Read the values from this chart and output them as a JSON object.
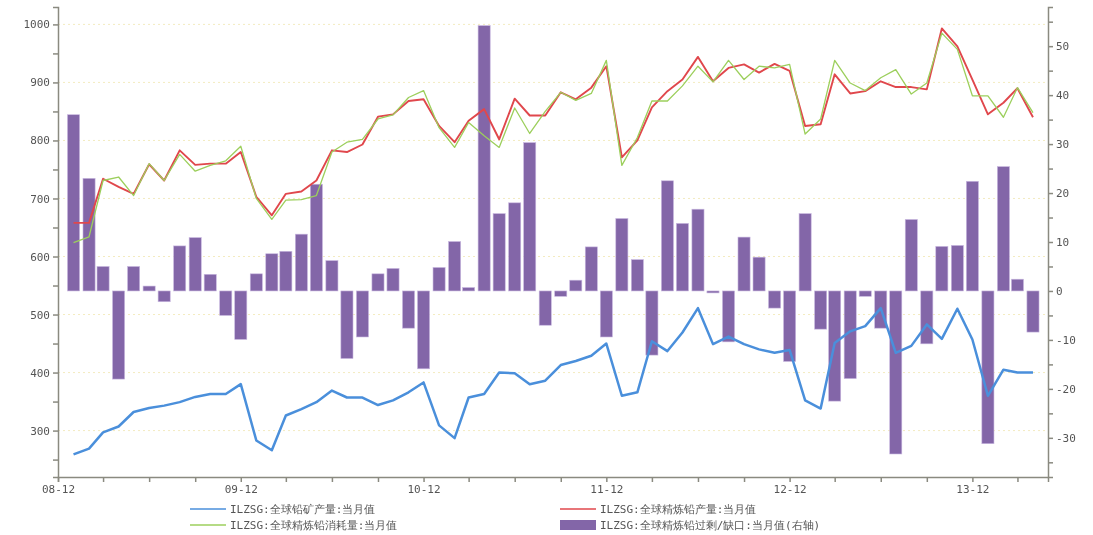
{
  "chart_data": {
    "type": "line",
    "legend": "bottom",
    "grid": "y",
    "x": [
      "2009-01",
      "2009-02",
      "2009-03",
      "2009-04",
      "2009-05",
      "2009-06",
      "2009-07",
      "2009-08",
      "2009-09",
      "2009-10",
      "2009-11",
      "2009-12",
      "2010-01",
      "2010-02",
      "2010-03",
      "2010-04",
      "2010-05",
      "2010-06",
      "2010-07",
      "2010-08",
      "2010-09",
      "2010-10",
      "2010-11",
      "2010-12",
      "2011-01",
      "2011-02",
      "2011-03",
      "2011-04",
      "2011-05",
      "2011-06",
      "2011-07",
      "2011-08",
      "2011-09",
      "2011-10",
      "2011-11",
      "2011-12",
      "2012-01",
      "2012-02",
      "2012-03",
      "2012-04",
      "2012-05",
      "2012-06",
      "2012-07",
      "2012-08",
      "2012-09",
      "2012-10",
      "2012-11",
      "2012-12",
      "2013-01",
      "2013-02",
      "2013-03",
      "2013-04",
      "2013-05",
      "2013-06",
      "2013-07",
      "2013-08",
      "2013-09",
      "2013-10",
      "2013-11",
      "2013-12",
      "2014-01",
      "2014-02",
      "2014-03",
      "2014-04"
    ],
    "xlim": [
      "2008-12",
      "2014-05"
    ],
    "xticks": [
      {
        "value": "2008-12",
        "label": "08-12"
      },
      {
        "value": "2009-03",
        "label": null
      },
      {
        "value": "2009-06",
        "label": null
      },
      {
        "value": "2009-09",
        "label": null
      },
      {
        "value": "2009-12",
        "label": "09-12"
      },
      {
        "value": "2010-03",
        "label": null
      },
      {
        "value": "2010-06",
        "label": null
      },
      {
        "value": "2010-09",
        "label": null
      },
      {
        "value": "2010-12",
        "label": "10-12"
      },
      {
        "value": "2011-03",
        "label": null
      },
      {
        "value": "2011-06",
        "label": null
      },
      {
        "value": "2011-09",
        "label": null
      },
      {
        "value": "2011-12",
        "label": "11-12"
      },
      {
        "value": "2012-03",
        "label": null
      },
      {
        "value": "2012-06",
        "label": null
      },
      {
        "value": "2012-09",
        "label": null
      },
      {
        "value": "2012-12",
        "label": "12-12"
      },
      {
        "value": "2013-03",
        "label": null
      },
      {
        "value": "2013-06",
        "label": null
      },
      {
        "value": "2013-09",
        "label": null
      },
      {
        "value": "2013-12",
        "label": "13-12"
      },
      {
        "value": "2014-03",
        "label": null
      }
    ],
    "ylim": [
      220,
      1030
    ],
    "yticks": [
      {
        "value": 250,
        "label": null
      },
      300,
      {
        "value": 350,
        "label": null
      },
      400,
      {
        "value": 450,
        "label": null
      },
      500,
      {
        "value": 550,
        "label": null
      },
      600,
      {
        "value": 650,
        "label": null
      },
      700,
      {
        "value": 750,
        "label": null
      },
      800,
      {
        "value": 850,
        "label": null
      },
      900,
      {
        "value": 950,
        "label": null
      },
      1000
    ],
    "y2lim": [
      -38,
      58
    ],
    "y2ticks": [
      {
        "value": -35,
        "label": null
      },
      -30,
      {
        "value": -25,
        "label": null
      },
      -20,
      {
        "value": -15,
        "label": null
      },
      -10,
      {
        "value": -5,
        "label": null
      },
      0,
      {
        "value": 5,
        "label": null
      },
      10,
      {
        "value": 15,
        "label": null
      },
      20,
      {
        "value": 25,
        "label": null
      },
      30,
      {
        "value": 35,
        "label": null
      },
      40,
      {
        "value": 45,
        "label": null
      },
      50,
      {
        "value": 55,
        "label": null
      }
    ],
    "series": [
      {
        "name": "ILZSG:全球铅矿产量:当月值",
        "color": "#4a8fdb",
        "values": [
          259,
          269,
          297,
          307,
          332,
          339,
          343,
          349,
          358,
          363,
          363,
          380,
          283,
          266,
          326,
          337,
          349,
          369,
          357,
          357,
          344,
          352,
          366,
          383,
          309,
          287,
          357,
          363,
          400,
          399,
          380,
          386,
          413,
          420,
          429,
          450,
          360,
          366,
          454,
          437,
          469,
          511,
          449,
          462,
          449,
          440,
          434,
          439,
          352,
          338,
          451,
          471,
          480,
          511,
          434,
          446,
          483,
          458,
          510,
          457,
          360,
          405,
          400,
          400
        ]
      },
      {
        "name": "ILZSG:全球精炼铅产量:当月值",
        "color": "#e0474c",
        "values": [
          658,
          658,
          734,
          720,
          708,
          759,
          731,
          783,
          758,
          760,
          760,
          780,
          703,
          671,
          708,
          712,
          731,
          783,
          780,
          793,
          841,
          845,
          868,
          871,
          825,
          797,
          834,
          854,
          802,
          872,
          843,
          843,
          883,
          871,
          891,
          928,
          771,
          800,
          857,
          885,
          905,
          944,
          902,
          925,
          931,
          917,
          932,
          920,
          825,
          828,
          914,
          881,
          885,
          902,
          892,
          892,
          888,
          993,
          962,
          905,
          845,
          865,
          890,
          840
        ]
      },
      {
        "name": "ILZSG:全球精炼铅消耗量:当月值",
        "color": "#9ccf5c",
        "values": [
          624,
          634,
          731,
          737,
          705,
          760,
          731,
          776,
          747,
          757,
          765,
          790,
          700,
          664,
          697,
          698,
          705,
          780,
          797,
          802,
          837,
          844,
          874,
          886,
          822,
          788,
          831,
          808,
          788,
          856,
          812,
          850,
          883,
          869,
          881,
          938,
          757,
          805,
          868,
          868,
          894,
          928,
          901,
          938,
          905,
          928,
          925,
          931,
          811,
          837,
          938,
          899,
          886,
          908,
          922,
          880,
          899,
          985,
          957,
          877,
          877,
          840,
          891,
          848
        ]
      },
      {
        "name": "ILZSG:全球精炼铅过剩/缺口:当月值(右轴)",
        "type": "bar",
        "axis": "y2",
        "color": "#8366a8",
        "values": [
          36,
          23,
          5,
          -18,
          5,
          1,
          -2.2,
          9.2,
          10.9,
          3.4,
          -5,
          -9.9,
          3.5,
          7.6,
          8.1,
          11.6,
          21.8,
          6.2,
          -13.8,
          -9.4,
          3.5,
          4.6,
          -7.6,
          -15.9,
          4.8,
          10.1,
          0.7,
          54.2,
          15.8,
          18,
          30.3,
          -7,
          -1.1,
          2.2,
          9,
          -9.4,
          14.8,
          6.4,
          -13.1,
          22.5,
          13.8,
          16.7,
          -0.4,
          -10.4,
          11,
          6.9,
          -3.5,
          -14.4,
          15.8,
          -7.8,
          -22.5,
          -17.9,
          -1.1,
          -7.6,
          -33.3,
          14.6,
          -10.8,
          9.1,
          9.3,
          22.4,
          -31.2,
          25.4,
          2.4,
          -8.4
        ]
      }
    ]
  }
}
